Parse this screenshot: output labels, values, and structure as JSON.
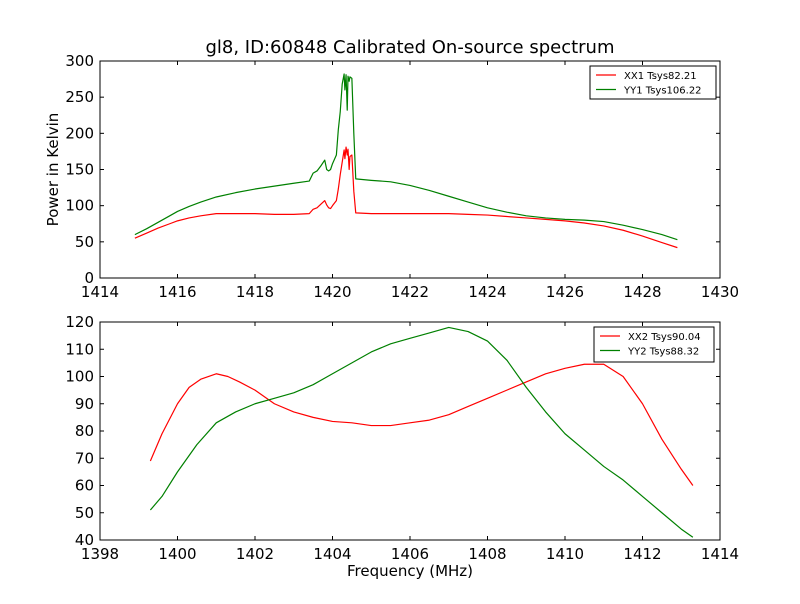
{
  "figure": {
    "title": "gl8, ID:60848 Calibrated On-source spectrum"
  },
  "chart_data": [
    {
      "type": "line",
      "title": "gl8, ID:60848 Calibrated On-source spectrum",
      "xlabel": "",
      "ylabel": "Power in Kelvin",
      "xlim": [
        1414,
        1430
      ],
      "ylim": [
        0,
        300
      ],
      "xticks": [
        1414,
        1416,
        1418,
        1420,
        1422,
        1424,
        1426,
        1428,
        1430
      ],
      "yticks": [
        0,
        50,
        100,
        150,
        200,
        250,
        300
      ],
      "grid": false,
      "legend": "top-right",
      "series": [
        {
          "name": "XX1 Tsys82.21",
          "color": "#ff0000",
          "x": [
            1414.9,
            1415.2,
            1415.5,
            1415.8,
            1416.0,
            1416.3,
            1416.6,
            1417.0,
            1417.5,
            1418.0,
            1418.5,
            1419.0,
            1419.4,
            1419.5,
            1419.6,
            1419.7,
            1419.8,
            1419.85,
            1419.9,
            1419.95,
            1420.0,
            1420.1,
            1420.15,
            1420.2,
            1420.25,
            1420.3,
            1420.32,
            1420.35,
            1420.38,
            1420.4,
            1420.43,
            1420.45,
            1420.5,
            1420.55,
            1420.6,
            1421.0,
            1421.5,
            1422.0,
            1422.5,
            1423.0,
            1423.5,
            1424.0,
            1424.5,
            1425.0,
            1425.5,
            1426.0,
            1426.5,
            1427.0,
            1427.5,
            1428.0,
            1428.5,
            1428.9
          ],
          "y": [
            55,
            62,
            69,
            75,
            79,
            83,
            86,
            89,
            89,
            89,
            88,
            88,
            89,
            95,
            97,
            102,
            107,
            101,
            97,
            96,
            100,
            107,
            123,
            143,
            160,
            177,
            165,
            181,
            170,
            178,
            150,
            168,
            170,
            120,
            90,
            89,
            89,
            89,
            89,
            89,
            88,
            87,
            85,
            83,
            81,
            79,
            76,
            72,
            66,
            58,
            49,
            42
          ]
        },
        {
          "name": "YY1 Tsys106.22",
          "color": "#008000",
          "x": [
            1414.9,
            1415.2,
            1415.5,
            1415.8,
            1416.0,
            1416.3,
            1416.6,
            1417.0,
            1417.5,
            1418.0,
            1418.5,
            1419.0,
            1419.4,
            1419.5,
            1419.6,
            1419.7,
            1419.8,
            1419.85,
            1419.9,
            1419.95,
            1420.0,
            1420.1,
            1420.15,
            1420.2,
            1420.25,
            1420.3,
            1420.32,
            1420.35,
            1420.38,
            1420.4,
            1420.43,
            1420.45,
            1420.5,
            1420.55,
            1420.6,
            1421.0,
            1421.5,
            1422.0,
            1422.5,
            1423.0,
            1423.5,
            1424.0,
            1424.5,
            1425.0,
            1425.5,
            1426.0,
            1426.5,
            1427.0,
            1427.5,
            1428.0,
            1428.5,
            1428.9
          ],
          "y": [
            60,
            68,
            77,
            86,
            92,
            99,
            105,
            112,
            118,
            123,
            127,
            131,
            134,
            145,
            148,
            155,
            163,
            150,
            148,
            150,
            158,
            170,
            205,
            230,
            268,
            282,
            260,
            281,
            232,
            279,
            272,
            278,
            276,
            200,
            137,
            135,
            133,
            128,
            121,
            113,
            105,
            97,
            91,
            86,
            83,
            81,
            80,
            78,
            73,
            67,
            60,
            53
          ]
        }
      ]
    },
    {
      "type": "line",
      "title": "",
      "xlabel": "Frequency (MHz)",
      "ylabel": "",
      "xlim": [
        1398,
        1414
      ],
      "ylim": [
        40,
        120
      ],
      "xticks": [
        1398,
        1400,
        1402,
        1404,
        1406,
        1408,
        1410,
        1412,
        1414
      ],
      "yticks": [
        40,
        50,
        60,
        70,
        80,
        90,
        100,
        110,
        120
      ],
      "grid": false,
      "legend": "top-right",
      "series": [
        {
          "name": "XX2 Tsys90.04",
          "color": "#ff0000",
          "x": [
            1399.3,
            1399.6,
            1400.0,
            1400.3,
            1400.6,
            1401.0,
            1401.3,
            1401.6,
            1402.0,
            1402.5,
            1403.0,
            1403.5,
            1404.0,
            1404.5,
            1405.0,
            1405.5,
            1406.0,
            1406.5,
            1407.0,
            1407.5,
            1408.0,
            1408.5,
            1409.0,
            1409.5,
            1410.0,
            1410.5,
            1411.0,
            1411.5,
            1412.0,
            1412.5,
            1413.0,
            1413.3
          ],
          "y": [
            69,
            79,
            90,
            96,
            99,
            101,
            100,
            98,
            95,
            90,
            87,
            85,
            83.5,
            83,
            82,
            82,
            83,
            84,
            86,
            89,
            92,
            95,
            98,
            101,
            103,
            104.5,
            104.5,
            100,
            90,
            77,
            66,
            60
          ]
        },
        {
          "name": "YY2 Tsys88.32",
          "color": "#008000",
          "x": [
            1399.3,
            1399.6,
            1400.0,
            1400.5,
            1401.0,
            1401.5,
            1402.0,
            1402.5,
            1403.0,
            1403.5,
            1404.0,
            1404.5,
            1405.0,
            1405.5,
            1406.0,
            1406.5,
            1407.0,
            1407.5,
            1408.0,
            1408.5,
            1409.0,
            1409.5,
            1410.0,
            1410.5,
            1411.0,
            1411.5,
            1412.0,
            1412.5,
            1413.0,
            1413.3
          ],
          "y": [
            51,
            56,
            65,
            75,
            83,
            87,
            90,
            92,
            94,
            97,
            101,
            105,
            109,
            112,
            114,
            116,
            118,
            116.5,
            113,
            106,
            96,
            87,
            79,
            73,
            67,
            62,
            56,
            50,
            44,
            41
          ]
        }
      ]
    }
  ]
}
